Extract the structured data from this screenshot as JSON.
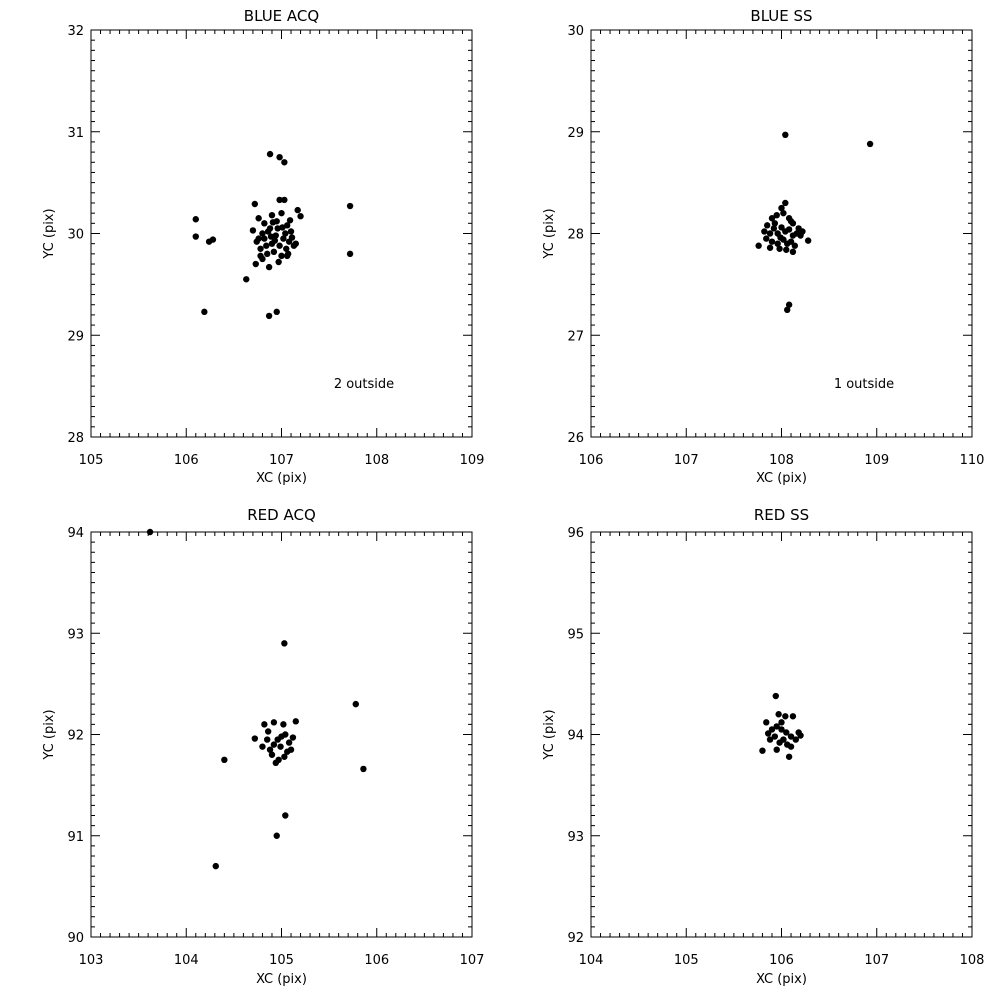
{
  "chart_data": [
    {
      "type": "scatter",
      "title": "BLUE ACQ",
      "xlabel": "XC (pix)",
      "ylabel": "YC (pix)",
      "xlim": [
        105,
        109
      ],
      "ylim": [
        28,
        32
      ],
      "xticks": [
        "105",
        "106",
        "107",
        "108",
        "109"
      ],
      "yticks": [
        "28",
        "29",
        "30",
        "31",
        "32"
      ],
      "annotation": "2 outside",
      "points": [
        [
          106.1,
          30.14
        ],
        [
          106.1,
          29.97
        ],
        [
          106.24,
          29.92
        ],
        [
          106.28,
          29.94
        ],
        [
          106.19,
          29.23
        ],
        [
          106.88,
          30.78
        ],
        [
          106.98,
          30.75
        ],
        [
          107.03,
          30.7
        ],
        [
          107.72,
          30.27
        ],
        [
          107.72,
          29.8
        ],
        [
          106.63,
          29.55
        ],
        [
          106.87,
          29.19
        ],
        [
          106.95,
          29.23
        ],
        [
          106.72,
          30.29
        ],
        [
          106.98,
          30.33
        ],
        [
          107.03,
          30.33
        ],
        [
          107.17,
          30.23
        ],
        [
          107.2,
          30.17
        ],
        [
          107.15,
          29.9
        ],
        [
          106.73,
          29.7
        ],
        [
          106.8,
          29.75
        ],
        [
          106.87,
          29.67
        ],
        [
          107.06,
          29.78
        ],
        [
          106.76,
          30.15
        ],
        [
          106.7,
          30.03
        ],
        [
          106.82,
          30.1
        ],
        [
          106.9,
          30.18
        ],
        [
          106.95,
          30.12
        ],
        [
          107.0,
          30.2
        ],
        [
          107.06,
          30.08
        ],
        [
          107.1,
          30.02
        ],
        [
          106.74,
          29.92
        ],
        [
          106.78,
          29.85
        ],
        [
          106.82,
          29.95
        ],
        [
          106.86,
          30.02
        ],
        [
          106.9,
          29.9
        ],
        [
          106.94,
          29.98
        ],
        [
          106.98,
          29.88
        ],
        [
          107.02,
          29.95
        ],
        [
          107.05,
          29.85
        ],
        [
          107.08,
          29.92
        ],
        [
          106.85,
          29.8
        ],
        [
          106.92,
          29.82
        ],
        [
          107.0,
          29.78
        ],
        [
          106.88,
          30.05
        ],
        [
          106.96,
          30.05
        ],
        [
          107.04,
          30.0
        ],
        [
          106.8,
          30.0
        ],
        [
          106.93,
          29.93
        ],
        [
          107.11,
          29.96
        ],
        [
          106.84,
          29.88
        ],
        [
          107.13,
          29.88
        ],
        [
          106.78,
          29.78
        ],
        [
          107.09,
          30.13
        ],
        [
          106.97,
          29.72
        ],
        [
          106.89,
          29.97
        ],
        [
          107.01,
          30.06
        ],
        [
          106.76,
          29.95
        ],
        [
          107.07,
          29.8
        ],
        [
          106.91,
          30.11
        ]
      ]
    },
    {
      "type": "scatter",
      "title": "BLUE SS",
      "xlabel": "XC (pix)",
      "ylabel": "YC (pix)",
      "xlim": [
        106,
        110
      ],
      "ylim": [
        26,
        30
      ],
      "xticks": [
        "106",
        "107",
        "108",
        "109",
        "110"
      ],
      "yticks": [
        "26",
        "27",
        "28",
        "29",
        "30"
      ],
      "annotation": "1 outside",
      "points": [
        [
          108.04,
          28.97
        ],
        [
          108.93,
          28.88
        ],
        [
          108.08,
          27.3
        ],
        [
          108.06,
          27.25
        ],
        [
          107.76,
          27.88
        ],
        [
          108.28,
          27.93
        ],
        [
          108.04,
          28.3
        ],
        [
          108.0,
          28.25
        ],
        [
          107.9,
          28.15
        ],
        [
          107.95,
          28.18
        ],
        [
          108.02,
          28.2
        ],
        [
          108.08,
          28.15
        ],
        [
          108.12,
          28.1
        ],
        [
          108.18,
          28.05
        ],
        [
          108.2,
          27.98
        ],
        [
          107.85,
          28.08
        ],
        [
          107.88,
          28.0
        ],
        [
          107.92,
          28.05
        ],
        [
          107.96,
          28.0
        ],
        [
          108.0,
          28.06
        ],
        [
          108.04,
          28.02
        ],
        [
          108.08,
          28.04
        ],
        [
          108.12,
          27.98
        ],
        [
          108.16,
          28.0
        ],
        [
          107.84,
          27.95
        ],
        [
          107.9,
          27.92
        ],
        [
          107.96,
          27.9
        ],
        [
          108.02,
          27.94
        ],
        [
          108.06,
          27.9
        ],
        [
          108.1,
          27.92
        ],
        [
          108.14,
          27.88
        ],
        [
          107.88,
          27.86
        ],
        [
          107.98,
          27.85
        ],
        [
          108.05,
          27.84
        ],
        [
          108.12,
          27.82
        ],
        [
          107.93,
          28.1
        ],
        [
          108.1,
          28.12
        ],
        [
          107.82,
          28.02
        ],
        [
          108.22,
          28.02
        ],
        [
          107.99,
          27.96
        ]
      ]
    },
    {
      "type": "scatter",
      "title": "RED ACQ",
      "xlabel": "XC (pix)",
      "ylabel": "YC (pix)",
      "xlim": [
        103,
        107
      ],
      "ylim": [
        90,
        94
      ],
      "xticks": [
        "103",
        "104",
        "105",
        "106",
        "107"
      ],
      "yticks": [
        "90",
        "91",
        "92",
        "93",
        "94"
      ],
      "points": [
        [
          103.62,
          94.0
        ],
        [
          105.03,
          92.9
        ],
        [
          105.78,
          92.3
        ],
        [
          105.86,
          91.66
        ],
        [
          104.4,
          91.75
        ],
        [
          105.04,
          91.2
        ],
        [
          104.95,
          91.0
        ],
        [
          104.31,
          90.7
        ],
        [
          104.72,
          91.96
        ],
        [
          104.82,
          92.1
        ],
        [
          104.92,
          92.12
        ],
        [
          105.02,
          92.1
        ],
        [
          105.15,
          92.13
        ],
        [
          104.8,
          91.88
        ],
        [
          104.85,
          91.95
        ],
        [
          104.88,
          91.85
        ],
        [
          104.92,
          91.9
        ],
        [
          104.96,
          91.95
        ],
        [
          105.0,
          91.98
        ],
        [
          105.04,
          92.0
        ],
        [
          105.08,
          91.92
        ],
        [
          105.1,
          91.85
        ],
        [
          104.9,
          91.8
        ],
        [
          104.97,
          91.75
        ],
        [
          105.03,
          91.78
        ],
        [
          105.06,
          91.83
        ],
        [
          104.86,
          92.03
        ],
        [
          104.99,
          91.88
        ],
        [
          104.94,
          91.72
        ],
        [
          105.12,
          91.97
        ]
      ]
    },
    {
      "type": "scatter",
      "title": "RED SS",
      "xlabel": "XC (pix)",
      "ylabel": "YC (pix)",
      "xlim": [
        104,
        108
      ],
      "ylim": [
        92,
        96
      ],
      "xticks": [
        "104",
        "105",
        "106",
        "107",
        "108"
      ],
      "yticks": [
        "92",
        "93",
        "94",
        "95",
        "96"
      ],
      "points": [
        [
          105.94,
          94.38
        ],
        [
          105.97,
          94.2
        ],
        [
          106.04,
          94.18
        ],
        [
          106.12,
          94.18
        ],
        [
          105.84,
          94.12
        ],
        [
          105.9,
          94.05
        ],
        [
          105.95,
          94.08
        ],
        [
          106.0,
          94.05
        ],
        [
          106.05,
          94.02
        ],
        [
          106.1,
          93.98
        ],
        [
          106.18,
          94.02
        ],
        [
          106.15,
          93.95
        ],
        [
          105.88,
          93.95
        ],
        [
          105.93,
          93.98
        ],
        [
          105.98,
          93.92
        ],
        [
          106.02,
          93.95
        ],
        [
          106.06,
          93.9
        ],
        [
          106.1,
          93.88
        ],
        [
          105.8,
          93.84
        ],
        [
          105.95,
          93.85
        ],
        [
          106.08,
          93.78
        ],
        [
          106.2,
          93.99
        ],
        [
          106.0,
          94.12
        ],
        [
          105.86,
          94.01
        ]
      ]
    }
  ]
}
